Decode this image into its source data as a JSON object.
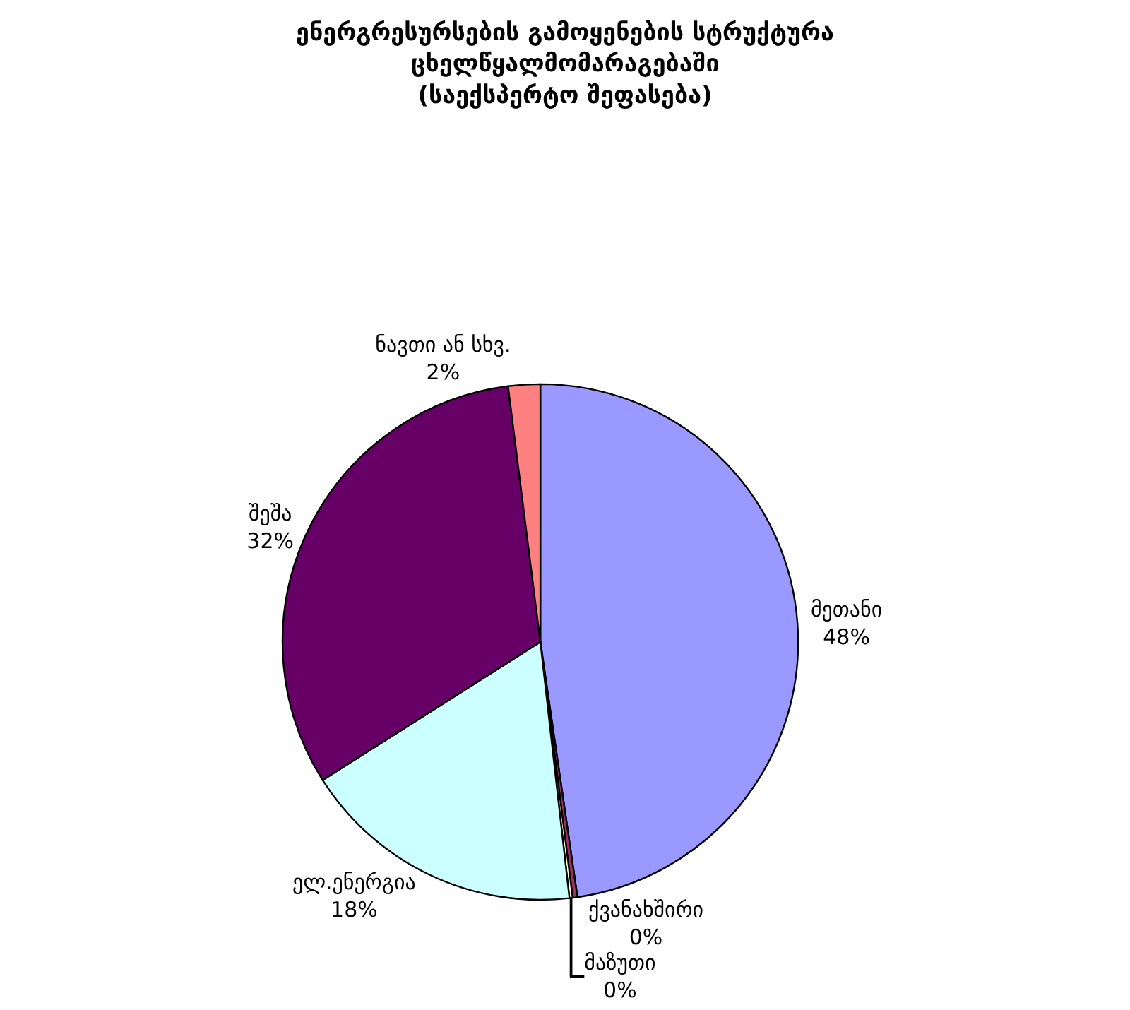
{
  "chart_data": {
    "type": "pie",
    "title": "ენერგრესურსების გამოყენების სტრუქტურა\nცხელწყალმომარაგებაში\n(საექსპერტო შეფასება)",
    "categories": [
      "მეთანი",
      "ქვანახშირი",
      "მაზუთი",
      "ელ.ენერგია",
      "შეშა",
      "ნავთი ან სხვ."
    ],
    "values": [
      47.7,
      0.3,
      0.2,
      17.8,
      32,
      2
    ],
    "value_labels": [
      "48%",
      "0%",
      "0%",
      "18%",
      "32%",
      "2%"
    ],
    "colors": [
      "#9999ff",
      "#993366",
      "#ffffcc",
      "#ccffff",
      "#660066",
      "#ff8080"
    ],
    "legend": false
  }
}
